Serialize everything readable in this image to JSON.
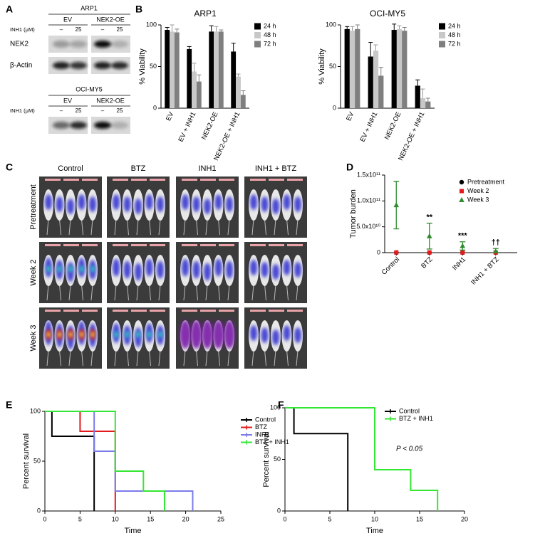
{
  "panel_labels": [
    "A",
    "B",
    "C",
    "D",
    "E",
    "F"
  ],
  "blots": [
    {
      "title": "ARP1",
      "groups": [
        "EV",
        "NEK2-OE"
      ],
      "treatment_label": "INH1 (μM)",
      "doses": [
        "–",
        "25",
        "–",
        "25"
      ],
      "rows": [
        "NEK2",
        "β-Actin"
      ]
    },
    {
      "title": "OCI-MY5",
      "groups": [
        "EV",
        "NEK2-OE"
      ],
      "treatment_label": "INH1 (μM)",
      "doses": [
        "–",
        "25",
        "–",
        "25"
      ]
    }
  ],
  "imaging": {
    "columns": [
      "Control",
      "BTZ",
      "INH1",
      "INH1 + BTZ"
    ],
    "rows": [
      "Pretreatment",
      "Week 2",
      "Week 3"
    ]
  },
  "chart_data": [
    {
      "type": "bar",
      "title": "ARP1",
      "ylabel": "% Viability",
      "categories": [
        "EV",
        "EV + INH1",
        "NEK2-OE",
        "NEK2-OE + INH1"
      ],
      "series": [
        {
          "name": "24 h",
          "color": "#000000",
          "values": [
            94,
            71,
            92,
            68
          ],
          "errors": [
            3,
            3,
            7,
            10
          ]
        },
        {
          "name": "48 h",
          "color": "#c8c8c8",
          "values": [
            92,
            44,
            92,
            38
          ],
          "errors": [
            8,
            10,
            6,
            3
          ]
        },
        {
          "name": "72 h",
          "color": "#7f7f7f",
          "values": [
            91,
            32,
            92,
            16
          ],
          "errors": [
            4,
            8,
            2,
            5
          ]
        }
      ],
      "ylim": [
        0,
        100
      ],
      "yticks": [
        0,
        50,
        100
      ]
    },
    {
      "type": "bar",
      "title": "OCI-MY5",
      "ylabel": "% Viability",
      "categories": [
        "EV",
        "EV + INH1",
        "NEK2-OE",
        "NEK2-OE + INH1"
      ],
      "series": [
        {
          "name": "24 h",
          "color": "#000000",
          "values": [
            95,
            62,
            94,
            27
          ],
          "errors": [
            3,
            17,
            7,
            7
          ]
        },
        {
          "name": "48 h",
          "color": "#c8c8c8",
          "values": [
            93,
            69,
            95,
            12
          ],
          "errors": [
            5,
            7,
            4,
            11
          ]
        },
        {
          "name": "72 h",
          "color": "#7f7f7f",
          "values": [
            95,
            39,
            93,
            8
          ],
          "errors": [
            5,
            10,
            4,
            4
          ]
        }
      ],
      "ylim": [
        0,
        100
      ],
      "yticks": [
        0,
        50,
        100
      ]
    },
    {
      "type": "scatter",
      "ylabel": "Tumor burden",
      "categories": [
        "Control",
        "BTZ",
        "INH1",
        "INH1 + BTZ"
      ],
      "series": [
        {
          "name": "Pretreatment",
          "color": "#000000",
          "marker": "circle",
          "values": [
            150000000,
            150000000,
            150000000,
            150000000
          ]
        },
        {
          "name": "Week 2",
          "color": "#e41a1c",
          "marker": "square",
          "values": [
            400000000,
            400000000,
            300000000,
            200000000
          ]
        },
        {
          "name": "Week 3",
          "color": "#2e8b2e",
          "marker": "triangle",
          "values": [
            92000000000,
            32000000000,
            13000000000,
            3000000000
          ],
          "errors": [
            46000000000,
            25000000000,
            8000000000,
            5000000000
          ]
        }
      ],
      "annotations": [
        null,
        "**",
        "***",
        "††"
      ],
      "ylim": [
        0,
        150000000000
      ],
      "yticks": [
        0,
        {
          "value": 50000000000,
          "label": "5.0x10¹⁰"
        },
        {
          "value": 100000000000,
          "label": "1.0x10¹¹"
        },
        {
          "value": 150000000000,
          "label": "1.5x10¹¹"
        }
      ]
    },
    {
      "type": "line",
      "step": true,
      "xlabel": "Time",
      "ylabel": "Percent survival",
      "series": [
        {
          "name": "Control",
          "color": "#000000",
          "x": [
            0,
            1,
            7
          ],
          "values": [
            100,
            75,
            0
          ]
        },
        {
          "name": "BTZ",
          "color": "#e31a1c",
          "x": [
            0,
            5,
            10
          ],
          "values": [
            100,
            80,
            0
          ]
        },
        {
          "name": "INH1",
          "color": "#7b7bea",
          "x": [
            0,
            7,
            10,
            21
          ],
          "values": [
            100,
            60,
            20,
            0
          ]
        },
        {
          "name": "BTZ + INH1",
          "color": "#33e633",
          "x": [
            0,
            10,
            14,
            17
          ],
          "values": [
            100,
            40,
            20,
            0
          ]
        }
      ],
      "xlim": [
        0,
        25
      ],
      "xticks": [
        0,
        5,
        10,
        15,
        20,
        25
      ],
      "ylim": [
        0,
        100
      ],
      "yticks": [
        0,
        50,
        100
      ]
    },
    {
      "type": "line",
      "step": true,
      "xlabel": "Time",
      "ylabel": "Percent survival",
      "annotation": "P < 0.05",
      "series": [
        {
          "name": "Control",
          "color": "#000000",
          "x": [
            0,
            1,
            7
          ],
          "values": [
            100,
            75,
            0
          ]
        },
        {
          "name": "BTZ + INH1",
          "color": "#33e633",
          "x": [
            0,
            10,
            14,
            17
          ],
          "values": [
            100,
            40,
            20,
            0
          ]
        }
      ],
      "xlim": [
        0,
        20
      ],
      "xticks": [
        0,
        5,
        10,
        15,
        20
      ],
      "ylim": [
        0,
        100
      ],
      "yticks": [
        0,
        50,
        100
      ]
    }
  ]
}
